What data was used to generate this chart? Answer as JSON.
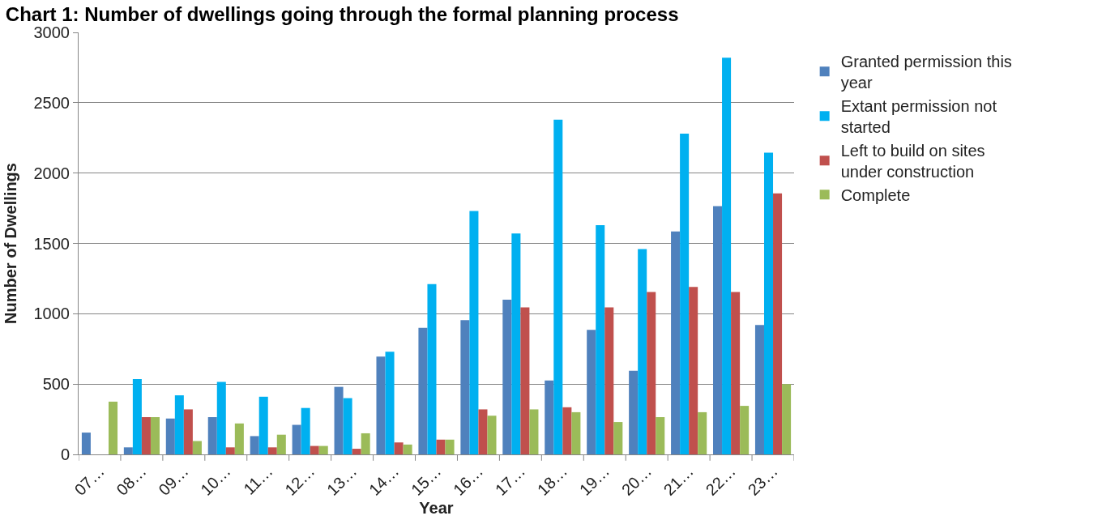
{
  "chart_data": {
    "type": "bar",
    "title": "Chart 1: Number of dwellings going through the formal planning process",
    "xlabel": "Year",
    "ylabel": "Number of Dwellings",
    "categories": [
      "07…",
      "08…",
      "09…",
      "10…",
      "11…",
      "12…",
      "13…",
      "14…",
      "15…",
      "16…",
      "17…",
      "18…",
      "19…",
      "20…",
      "21…",
      "22…",
      "23…"
    ],
    "series": [
      {
        "name": "Granted permission this year",
        "color": "#4f81bd",
        "values": [
          155,
          50,
          255,
          265,
          130,
          210,
          480,
          695,
          900,
          955,
          1100,
          525,
          885,
          595,
          1585,
          1765,
          920
        ]
      },
      {
        "name": "Extant permission not started",
        "color": "#00b0f0",
        "values": [
          0,
          535,
          420,
          515,
          410,
          330,
          400,
          730,
          1210,
          1730,
          1570,
          2380,
          1630,
          1460,
          2280,
          2820,
          2145
        ]
      },
      {
        "name": "Left to build on sites under construction",
        "color": "#c0504d",
        "values": [
          0,
          265,
          320,
          50,
          50,
          60,
          40,
          85,
          105,
          320,
          1045,
          335,
          1045,
          1155,
          1190,
          1155,
          1855
        ]
      },
      {
        "name": "Complete",
        "color": "#9bbb59",
        "values": [
          375,
          265,
          95,
          220,
          140,
          60,
          150,
          70,
          105,
          275,
          320,
          300,
          230,
          265,
          300,
          345,
          500
        ]
      }
    ],
    "ylim": [
      0,
      3000
    ],
    "yticks": [
      0,
      500,
      1000,
      1500,
      2000,
      2500,
      3000
    ],
    "grid": "y",
    "legend": "right"
  }
}
